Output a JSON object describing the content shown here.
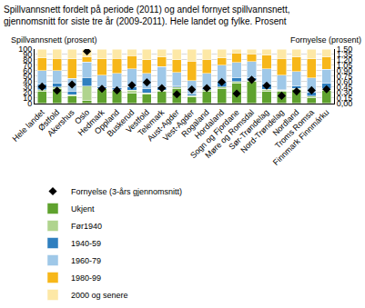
{
  "chart_data": {
    "type": "bar",
    "stacked": true,
    "grid": true,
    "legend": "bottom",
    "title": [
      "Spillvannsnett fordelt på periode (2011) og andel fornyet spillvannsnett,",
      "gjennomsnitt for siste tre år (2009-2011). Hele landet og fylke. Prosent"
    ],
    "ylabel": "Spillvannsnett (prosent)",
    "y2label": "Fornyelse (prosent)",
    "categories": [
      "Hele landet",
      "Østfold",
      "Akershus",
      "Oslo",
      "Hedmark",
      "Oppland",
      "Buskerud",
      "Vestfold",
      "Telemark",
      "Aust-Agder",
      "Vest-Agder",
      "Rogaland",
      "Hordaland",
      "Sogn og Fjordane",
      "Møre og Romsdal",
      "Sør-Trøndelag",
      "Nord-Trøndelag",
      "Nordland",
      "Troms Romsa",
      "Finnmark Finnmárku"
    ],
    "ylim": [
      0,
      100
    ],
    "yticks": [
      0,
      10,
      20,
      30,
      40,
      50,
      60,
      70,
      80,
      90,
      100
    ],
    "y2lim": [
      0,
      1.5
    ],
    "y2ticks": [
      {
        "value": 0,
        "label": "0,00"
      },
      {
        "value": 0.15,
        "label": "0,15"
      },
      {
        "value": 0.3,
        "label": "0,30"
      },
      {
        "value": 0.45,
        "label": "0,45"
      },
      {
        "value": 0.6,
        "label": "0,60"
      },
      {
        "value": 0.75,
        "label": "0,75"
      },
      {
        "value": 0.9,
        "label": "0,90"
      },
      {
        "value": 1.05,
        "label": "1,05"
      },
      {
        "value": 1.2,
        "label": "1,20"
      },
      {
        "value": 1.35,
        "label": "1,35"
      },
      {
        "value": 1.5,
        "label": "1,50"
      }
    ],
    "series": [
      {
        "name": "Fornyelse (3-års gjennomsnitt)",
        "type": "scatter",
        "axis": "y2",
        "marker": "diamond",
        "color": "#000000",
        "values": [
          0.46,
          0.35,
          0.52,
          1.44,
          0.4,
          0.36,
          0.5,
          0.58,
          0.42,
          0.25,
          0.38,
          0.42,
          0.59,
          0.27,
          0.65,
          0.49,
          0.21,
          0.33,
          0.36,
          0.39
        ]
      },
      {
        "name": "Ukjent",
        "type": "bar",
        "color": "#5fa22e",
        "values": [
          22,
          27,
          13,
          6,
          27,
          24,
          19,
          17,
          22,
          27,
          12,
          22,
          28,
          37,
          40,
          22,
          23,
          26,
          11,
          24
        ]
      },
      {
        "name": "Før1940",
        "type": "bar",
        "color": "#b0d48e",
        "values": [
          3,
          3,
          3,
          26,
          1,
          1,
          5,
          2,
          2,
          3,
          2,
          3,
          2,
          3,
          2,
          4,
          1,
          2,
          2,
          3
        ]
      },
      {
        "name": "1940-59",
        "type": "bar",
        "color": "#2f7fbf",
        "values": [
          10,
          7,
          7,
          16,
          2,
          4,
          6,
          9,
          7,
          3,
          3,
          4,
          10,
          7,
          5,
          10,
          2,
          4,
          7,
          10
        ]
      },
      {
        "name": "1960-79",
        "type": "bar",
        "color": "#9fc8e8",
        "values": [
          25,
          23,
          23,
          28,
          22,
          26,
          34,
          27,
          37,
          24,
          25,
          26,
          30,
          28,
          30,
          28,
          26,
          27,
          27,
          26
        ]
      },
      {
        "name": "1980-99",
        "type": "bar",
        "color": "#f7b719",
        "values": [
          24,
          23,
          36,
          10,
          30,
          28,
          24,
          25,
          17,
          23,
          36,
          26,
          14,
          18,
          14,
          25,
          31,
          26,
          35,
          22
        ]
      },
      {
        "name": "2000 og senere",
        "type": "bar",
        "color": "#fde8a6",
        "values": [
          16,
          17,
          18,
          14,
          18,
          17,
          12,
          20,
          15,
          20,
          22,
          19,
          16,
          7,
          9,
          11,
          17,
          15,
          18,
          15
        ]
      }
    ]
  }
}
